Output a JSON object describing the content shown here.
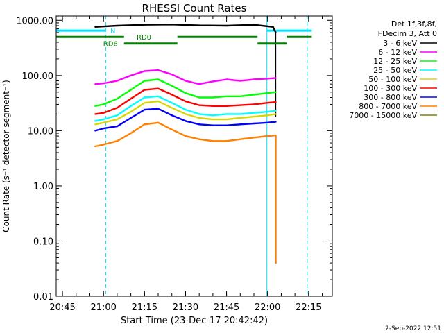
{
  "chart_data": {
    "type": "line",
    "title": "RHESSI Count Rates",
    "xlabel": "Start Time (23-Dec-17 20:42:42)",
    "ylabel": "Count Rate (s⁻¹ detector segment⁻¹)",
    "yscale": "log",
    "xlim": [
      "20:42:42",
      "22:23:40"
    ],
    "ylim": [
      0.01,
      1200
    ],
    "grid": false,
    "xticks": [
      "20:45",
      "21:00",
      "21:15",
      "21:30",
      "21:45",
      "22:00",
      "22:15"
    ],
    "yticks": [
      "0.01",
      "0.10",
      "1.00",
      "10.00",
      "100.00",
      "1000.00"
    ],
    "legend_position": "top-right",
    "legend_header": [
      "Det 1f,3f,8f,",
      "FDecim 3, Att 0"
    ],
    "series": [
      {
        "name": "3 - 6 keV",
        "color": "#000000",
        "x": [
          "20:57",
          "21:05",
          "21:15",
          "21:25",
          "21:35",
          "21:45",
          "21:55",
          "22:02",
          "22:03"
        ],
        "values": [
          760,
          800,
          830,
          840,
          810,
          800,
          830,
          760,
          600
        ]
      },
      {
        "name": "6 - 12 keV",
        "color": "#ff00ff",
        "x": [
          "20:57",
          "21:00",
          "21:05",
          "21:10",
          "21:15",
          "21:20",
          "21:25",
          "21:30",
          "21:35",
          "21:40",
          "21:45",
          "21:50",
          "21:55",
          "22:00",
          "22:03"
        ],
        "values": [
          70,
          72,
          80,
          100,
          120,
          125,
          105,
          80,
          70,
          78,
          85,
          80,
          85,
          88,
          90
        ]
      },
      {
        "name": "12 - 25 keV",
        "color": "#00ff00",
        "x": [
          "20:57",
          "21:00",
          "21:05",
          "21:10",
          "21:15",
          "21:20",
          "21:25",
          "21:30",
          "21:35",
          "21:40",
          "21:45",
          "21:50",
          "21:55",
          "22:00",
          "22:03"
        ],
        "values": [
          28,
          30,
          38,
          55,
          80,
          85,
          65,
          48,
          40,
          40,
          42,
          42,
          45,
          48,
          50
        ]
      },
      {
        "name": "25 - 50 keV",
        "color": "#00ffff",
        "x": [
          "20:57",
          "21:00",
          "21:05",
          "21:10",
          "21:15",
          "21:20",
          "21:25",
          "21:30",
          "21:35",
          "21:40",
          "21:45",
          "21:50",
          "21:55",
          "22:00",
          "22:03"
        ],
        "values": [
          15,
          16,
          19,
          28,
          40,
          42,
          32,
          24,
          20,
          19,
          20,
          20,
          21,
          22,
          23
        ]
      },
      {
        "name": "50 - 100 keV",
        "color": "#d8d800",
        "x": [
          "20:57",
          "21:00",
          "21:05",
          "21:10",
          "21:15",
          "21:20",
          "21:25",
          "21:30",
          "21:35",
          "21:40",
          "21:45",
          "21:50",
          "21:55",
          "22:00",
          "22:03"
        ],
        "values": [
          13,
          14,
          16,
          22,
          32,
          34,
          26,
          20,
          17,
          16,
          16,
          17,
          18,
          19,
          20
        ]
      },
      {
        "name": "100 - 300 keV",
        "color": "#ff0000",
        "x": [
          "20:57",
          "21:00",
          "21:05",
          "21:10",
          "21:15",
          "21:20",
          "21:25",
          "21:30",
          "21:35",
          "21:40",
          "21:45",
          "21:50",
          "21:55",
          "22:00",
          "22:03"
        ],
        "values": [
          20,
          21,
          26,
          38,
          55,
          58,
          45,
          34,
          29,
          28,
          28,
          29,
          30,
          32,
          33
        ]
      },
      {
        "name": "300 - 800 keV",
        "color": "#0000ff",
        "x": [
          "20:57",
          "21:00",
          "21:05",
          "21:10",
          "21:15",
          "21:20",
          "21:25",
          "21:30",
          "21:35",
          "21:40",
          "21:45",
          "21:50",
          "21:55",
          "22:00",
          "22:03"
        ],
        "values": [
          10,
          11,
          12,
          17,
          24,
          25,
          19,
          15,
          13,
          12.5,
          12.5,
          13,
          13.5,
          14,
          14.5
        ]
      },
      {
        "name": "800 - 7000 keV",
        "color": "#ff8000",
        "x": [
          "20:57",
          "21:00",
          "21:05",
          "21:10",
          "21:15",
          "21:20",
          "21:25",
          "21:30",
          "21:35",
          "21:40",
          "21:45",
          "21:50",
          "21:55",
          "22:00",
          "22:03",
          "22:03"
        ],
        "values": [
          5.2,
          5.6,
          6.5,
          9,
          13,
          14,
          10.5,
          8,
          7,
          6.5,
          6.5,
          7,
          7.5,
          8,
          8.2,
          0.04
        ]
      },
      {
        "name": "7000 - 15000 keV",
        "color": "#808000",
        "x": [],
        "values": []
      }
    ],
    "annotations": {
      "vertical_lines_dashed": [
        "20:42:42",
        "21:00:49",
        "22:14:30"
      ],
      "vertical_lines_solid": [
        "21:59:45"
      ],
      "vertical_line_black": "22:03:00",
      "night_bars": [
        {
          "label": "N",
          "start": "20:42:42",
          "end": "21:00:49",
          "y": 650
        },
        {
          "label": "",
          "start": "21:59:45",
          "end": "22:16:10",
          "y": 650
        }
      ],
      "rd0_bars": [
        {
          "label": "RD0",
          "start": "20:42:42",
          "end": "21:07:30",
          "y": 500
        },
        {
          "label": "",
          "start": "21:27:00",
          "end": "21:56:20",
          "y": 500
        },
        {
          "label": "",
          "start": "22:07:00",
          "end": "22:16:10",
          "y": 500
        }
      ],
      "rd6_bars": [
        {
          "label": "RD6",
          "start": "21:07:30",
          "end": "21:27:00",
          "y": 380
        },
        {
          "label": "",
          "start": "21:56:20",
          "end": "22:07:00",
          "y": 380
        }
      ]
    }
  },
  "timestamp": "2-Sep-2022 12:51"
}
